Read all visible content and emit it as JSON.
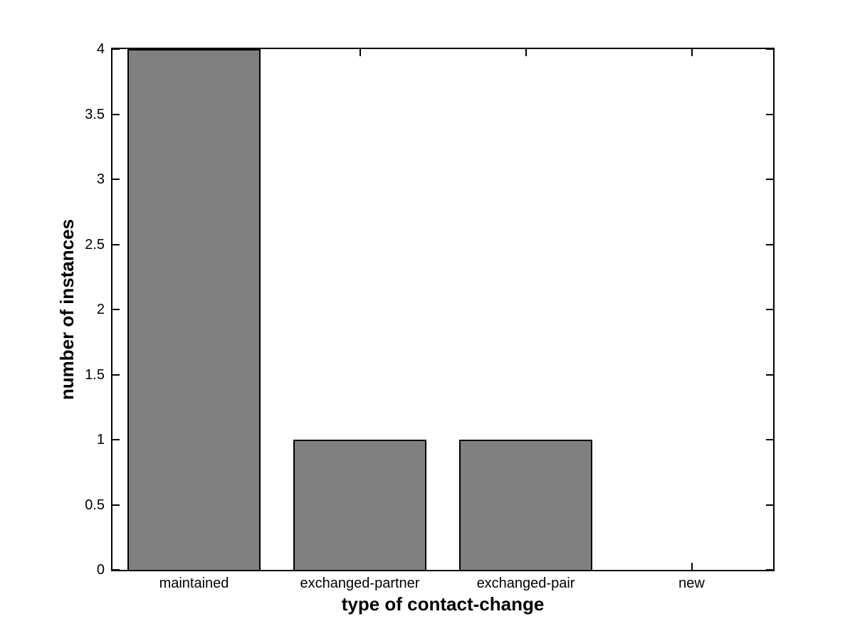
{
  "chart_data": {
    "type": "bar",
    "title": "",
    "xlabel": "type of contact-change",
    "ylabel": "number of instances",
    "categories": [
      "maintained",
      "exchanged-partner",
      "exchanged-pair",
      "new"
    ],
    "values": [
      4,
      1,
      1,
      0
    ],
    "ylim": [
      0,
      4
    ],
    "yticks": [
      0,
      0.5,
      1,
      1.5,
      2,
      2.5,
      3,
      3.5,
      4
    ],
    "ytick_labels": [
      "0",
      "0.5",
      "1",
      "1.5",
      "2",
      "2.5",
      "3",
      "3.5",
      "4"
    ],
    "bar_width_fraction": 0.8,
    "bar_color": "#808080",
    "bar_edge_color": "#000000",
    "axis_color": "#000000",
    "background_color": "#ffffff",
    "grid": false,
    "legend": "none",
    "ticks_inward_mirrored": true
  }
}
